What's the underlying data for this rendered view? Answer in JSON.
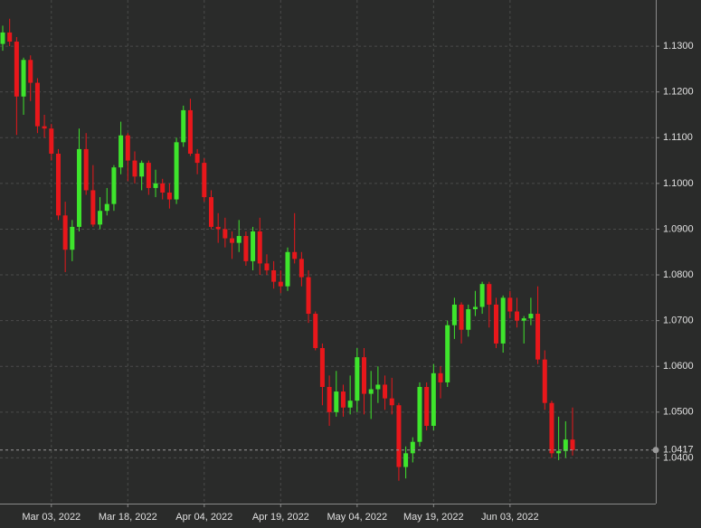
{
  "chart_data": {
    "type": "candlestick",
    "x": [
      "2022-02-22",
      "2022-02-23",
      "2022-02-24",
      "2022-02-25",
      "2022-02-28",
      "2022-03-01",
      "2022-03-02",
      "2022-03-03",
      "2022-03-04",
      "2022-03-07",
      "2022-03-08",
      "2022-03-09",
      "2022-03-10",
      "2022-03-11",
      "2022-03-14",
      "2022-03-15",
      "2022-03-16",
      "2022-03-17",
      "2022-03-18",
      "2022-03-21",
      "2022-03-22",
      "2022-03-23",
      "2022-03-24",
      "2022-03-25",
      "2022-03-28",
      "2022-03-29",
      "2022-03-30",
      "2022-03-31",
      "2022-04-01",
      "2022-04-04",
      "2022-04-05",
      "2022-04-06",
      "2022-04-07",
      "2022-04-08",
      "2022-04-11",
      "2022-04-12",
      "2022-04-13",
      "2022-04-14",
      "2022-04-15",
      "2022-04-18",
      "2022-04-19",
      "2022-04-20",
      "2022-04-21",
      "2022-04-22",
      "2022-04-25",
      "2022-04-26",
      "2022-04-27",
      "2022-04-28",
      "2022-04-29",
      "2022-05-02",
      "2022-05-03",
      "2022-05-04",
      "2022-05-05",
      "2022-05-06",
      "2022-05-09",
      "2022-05-10",
      "2022-05-11",
      "2022-05-12",
      "2022-05-13",
      "2022-05-16",
      "2022-05-17",
      "2022-05-18",
      "2022-05-19",
      "2022-05-20",
      "2022-05-23",
      "2022-05-24",
      "2022-05-25",
      "2022-05-26",
      "2022-05-27",
      "2022-05-30",
      "2022-05-31",
      "2022-06-01",
      "2022-06-02",
      "2022-06-03",
      "2022-06-06",
      "2022-06-07",
      "2022-06-08",
      "2022-06-09",
      "2022-06-10",
      "2022-06-13",
      "2022-06-14",
      "2022-06-15",
      "2022-06-16"
    ],
    "open": [
      1.1305,
      1.133,
      1.131,
      1.119,
      1.127,
      1.122,
      1.1125,
      1.112,
      1.1065,
      1.093,
      1.0855,
      1.0905,
      1.1075,
      1.0985,
      1.091,
      1.094,
      1.0955,
      1.1035,
      1.1105,
      1.105,
      1.1015,
      1.1045,
      1.099,
      1.1,
      1.098,
      1.0965,
      1.109,
      1.116,
      1.1065,
      1.1045,
      1.097,
      1.0905,
      1.09,
      1.088,
      1.087,
      1.0885,
      1.083,
      1.0895,
      1.0825,
      1.081,
      1.0785,
      1.0775,
      1.085,
      1.0835,
      1.0795,
      1.0715,
      1.064,
      1.0555,
      1.05,
      1.0545,
      1.051,
      1.0525,
      1.062,
      1.054,
      1.055,
      1.056,
      1.053,
      1.0515,
      1.038,
      1.041,
      1.0435,
      1.0555,
      1.047,
      1.0585,
      1.0565,
      1.069,
      1.0735,
      1.068,
      1.0725,
      1.073,
      1.078,
      1.0735,
      1.065,
      1.075,
      1.072,
      1.07,
      1.0705,
      1.0715,
      1.0615,
      1.052,
      1.041,
      1.0415,
      1.044
    ],
    "high": [
      1.1345,
      1.136,
      1.132,
      1.1275,
      1.128,
      1.123,
      1.115,
      1.113,
      1.1075,
      1.096,
      1.092,
      1.112,
      1.111,
      1.104,
      1.097,
      1.099,
      1.104,
      1.1135,
      1.111,
      1.107,
      1.105,
      1.105,
      1.103,
      1.101,
      1.1,
      1.11,
      1.117,
      1.1185,
      1.1075,
      1.1055,
      1.0985,
      1.0935,
      1.0925,
      1.0895,
      1.092,
      1.0895,
      1.0905,
      1.0925,
      1.0845,
      1.083,
      1.081,
      1.086,
      1.0935,
      1.085,
      1.081,
      1.072,
      1.065,
      1.058,
      1.059,
      1.056,
      1.058,
      1.064,
      1.064,
      1.059,
      1.06,
      1.058,
      1.0575,
      1.052,
      1.0425,
      1.0445,
      1.0565,
      1.0565,
      1.0605,
      1.06,
      1.07,
      1.075,
      1.074,
      1.0735,
      1.0765,
      1.0785,
      1.0785,
      1.075,
      1.0755,
      1.0765,
      1.075,
      1.071,
      1.075,
      1.0775,
      1.0635,
      1.0525,
      1.049,
      1.048,
      1.051
    ],
    "low": [
      1.129,
      1.13,
      1.1106,
      1.115,
      1.118,
      1.111,
      1.11,
      1.105,
      1.092,
      1.0806,
      1.083,
      1.0895,
      1.0975,
      1.0905,
      1.09,
      1.093,
      1.094,
      1.102,
      1.1005,
      1.1,
      1.0985,
      1.0975,
      1.097,
      1.0965,
      1.0945,
      1.0955,
      1.108,
      1.106,
      1.102,
      1.096,
      1.09,
      1.087,
      1.086,
      1.0835,
      1.085,
      1.082,
      1.081,
      1.08,
      1.08,
      1.077,
      1.076,
      1.0765,
      1.0825,
      1.0775,
      1.0695,
      1.0635,
      1.0515,
      1.047,
      1.049,
      1.049,
      1.0495,
      1.05,
      1.0495,
      1.0485,
      1.052,
      1.0505,
      1.0495,
      1.035,
      1.0355,
      1.039,
      1.0425,
      1.046,
      1.046,
      1.053,
      1.0555,
      1.066,
      1.065,
      1.0665,
      1.071,
      1.0715,
      1.0685,
      1.064,
      1.063,
      1.0705,
      1.0685,
      1.065,
      1.069,
      1.0605,
      1.0505,
      1.04,
      1.0395,
      1.04,
      1.0405
    ],
    "close": [
      1.133,
      1.131,
      1.119,
      1.127,
      1.122,
      1.1125,
      1.112,
      1.1065,
      1.093,
      1.0855,
      1.0905,
      1.1075,
      1.0985,
      1.091,
      1.094,
      1.0955,
      1.1035,
      1.1105,
      1.105,
      1.1015,
      1.1045,
      1.099,
      1.1,
      1.098,
      1.0965,
      1.109,
      1.116,
      1.1065,
      1.1045,
      1.097,
      1.0905,
      1.09,
      1.088,
      1.087,
      1.0885,
      1.083,
      1.0895,
      1.0825,
      1.081,
      1.0785,
      1.0775,
      1.085,
      1.0835,
      1.0795,
      1.0715,
      1.064,
      1.0555,
      1.05,
      1.0545,
      1.051,
      1.0525,
      1.062,
      1.054,
      1.055,
      1.056,
      1.053,
      1.0515,
      1.038,
      1.041,
      1.0435,
      1.0555,
      1.047,
      1.0585,
      1.0565,
      1.069,
      1.0735,
      1.068,
      1.0725,
      1.073,
      1.078,
      1.0735,
      1.065,
      1.075,
      1.072,
      1.07,
      1.0705,
      1.0715,
      1.0615,
      1.052,
      1.041,
      1.0415,
      1.044,
      1.0417
    ],
    "up_color": "#3ee52c",
    "down_color": "#e8171b",
    "ylim": [
      1.03,
      1.1401
    ],
    "yticks": [
      {
        "value": 1.04,
        "label": "1.0400"
      },
      {
        "value": 1.05,
        "label": "1.0500"
      },
      {
        "value": 1.06,
        "label": "1.0600"
      },
      {
        "value": 1.07,
        "label": "1.0700"
      },
      {
        "value": 1.08,
        "label": "1.0800"
      },
      {
        "value": 1.09,
        "label": "1.0900"
      },
      {
        "value": 1.1,
        "label": "1.1000"
      },
      {
        "value": 1.11,
        "label": "1.1100"
      },
      {
        "value": 1.12,
        "label": "1.1200"
      },
      {
        "value": 1.13,
        "label": "1.1300"
      }
    ],
    "xticks": [
      {
        "value": "2022-03-03",
        "label": "Mar 03, 2022"
      },
      {
        "value": "2022-03-18",
        "label": "Mar 18, 2022"
      },
      {
        "value": "2022-04-04",
        "label": "Apr 04, 2022"
      },
      {
        "value": "2022-04-19",
        "label": "Apr 19, 2022"
      },
      {
        "value": "2022-05-04",
        "label": "May 04, 2022"
      },
      {
        "value": "2022-05-19",
        "label": "May 19, 2022"
      },
      {
        "value": "2022-06-03",
        "label": "Jun 03, 2022"
      }
    ],
    "grid": true,
    "last_price": 1.0417
  }
}
